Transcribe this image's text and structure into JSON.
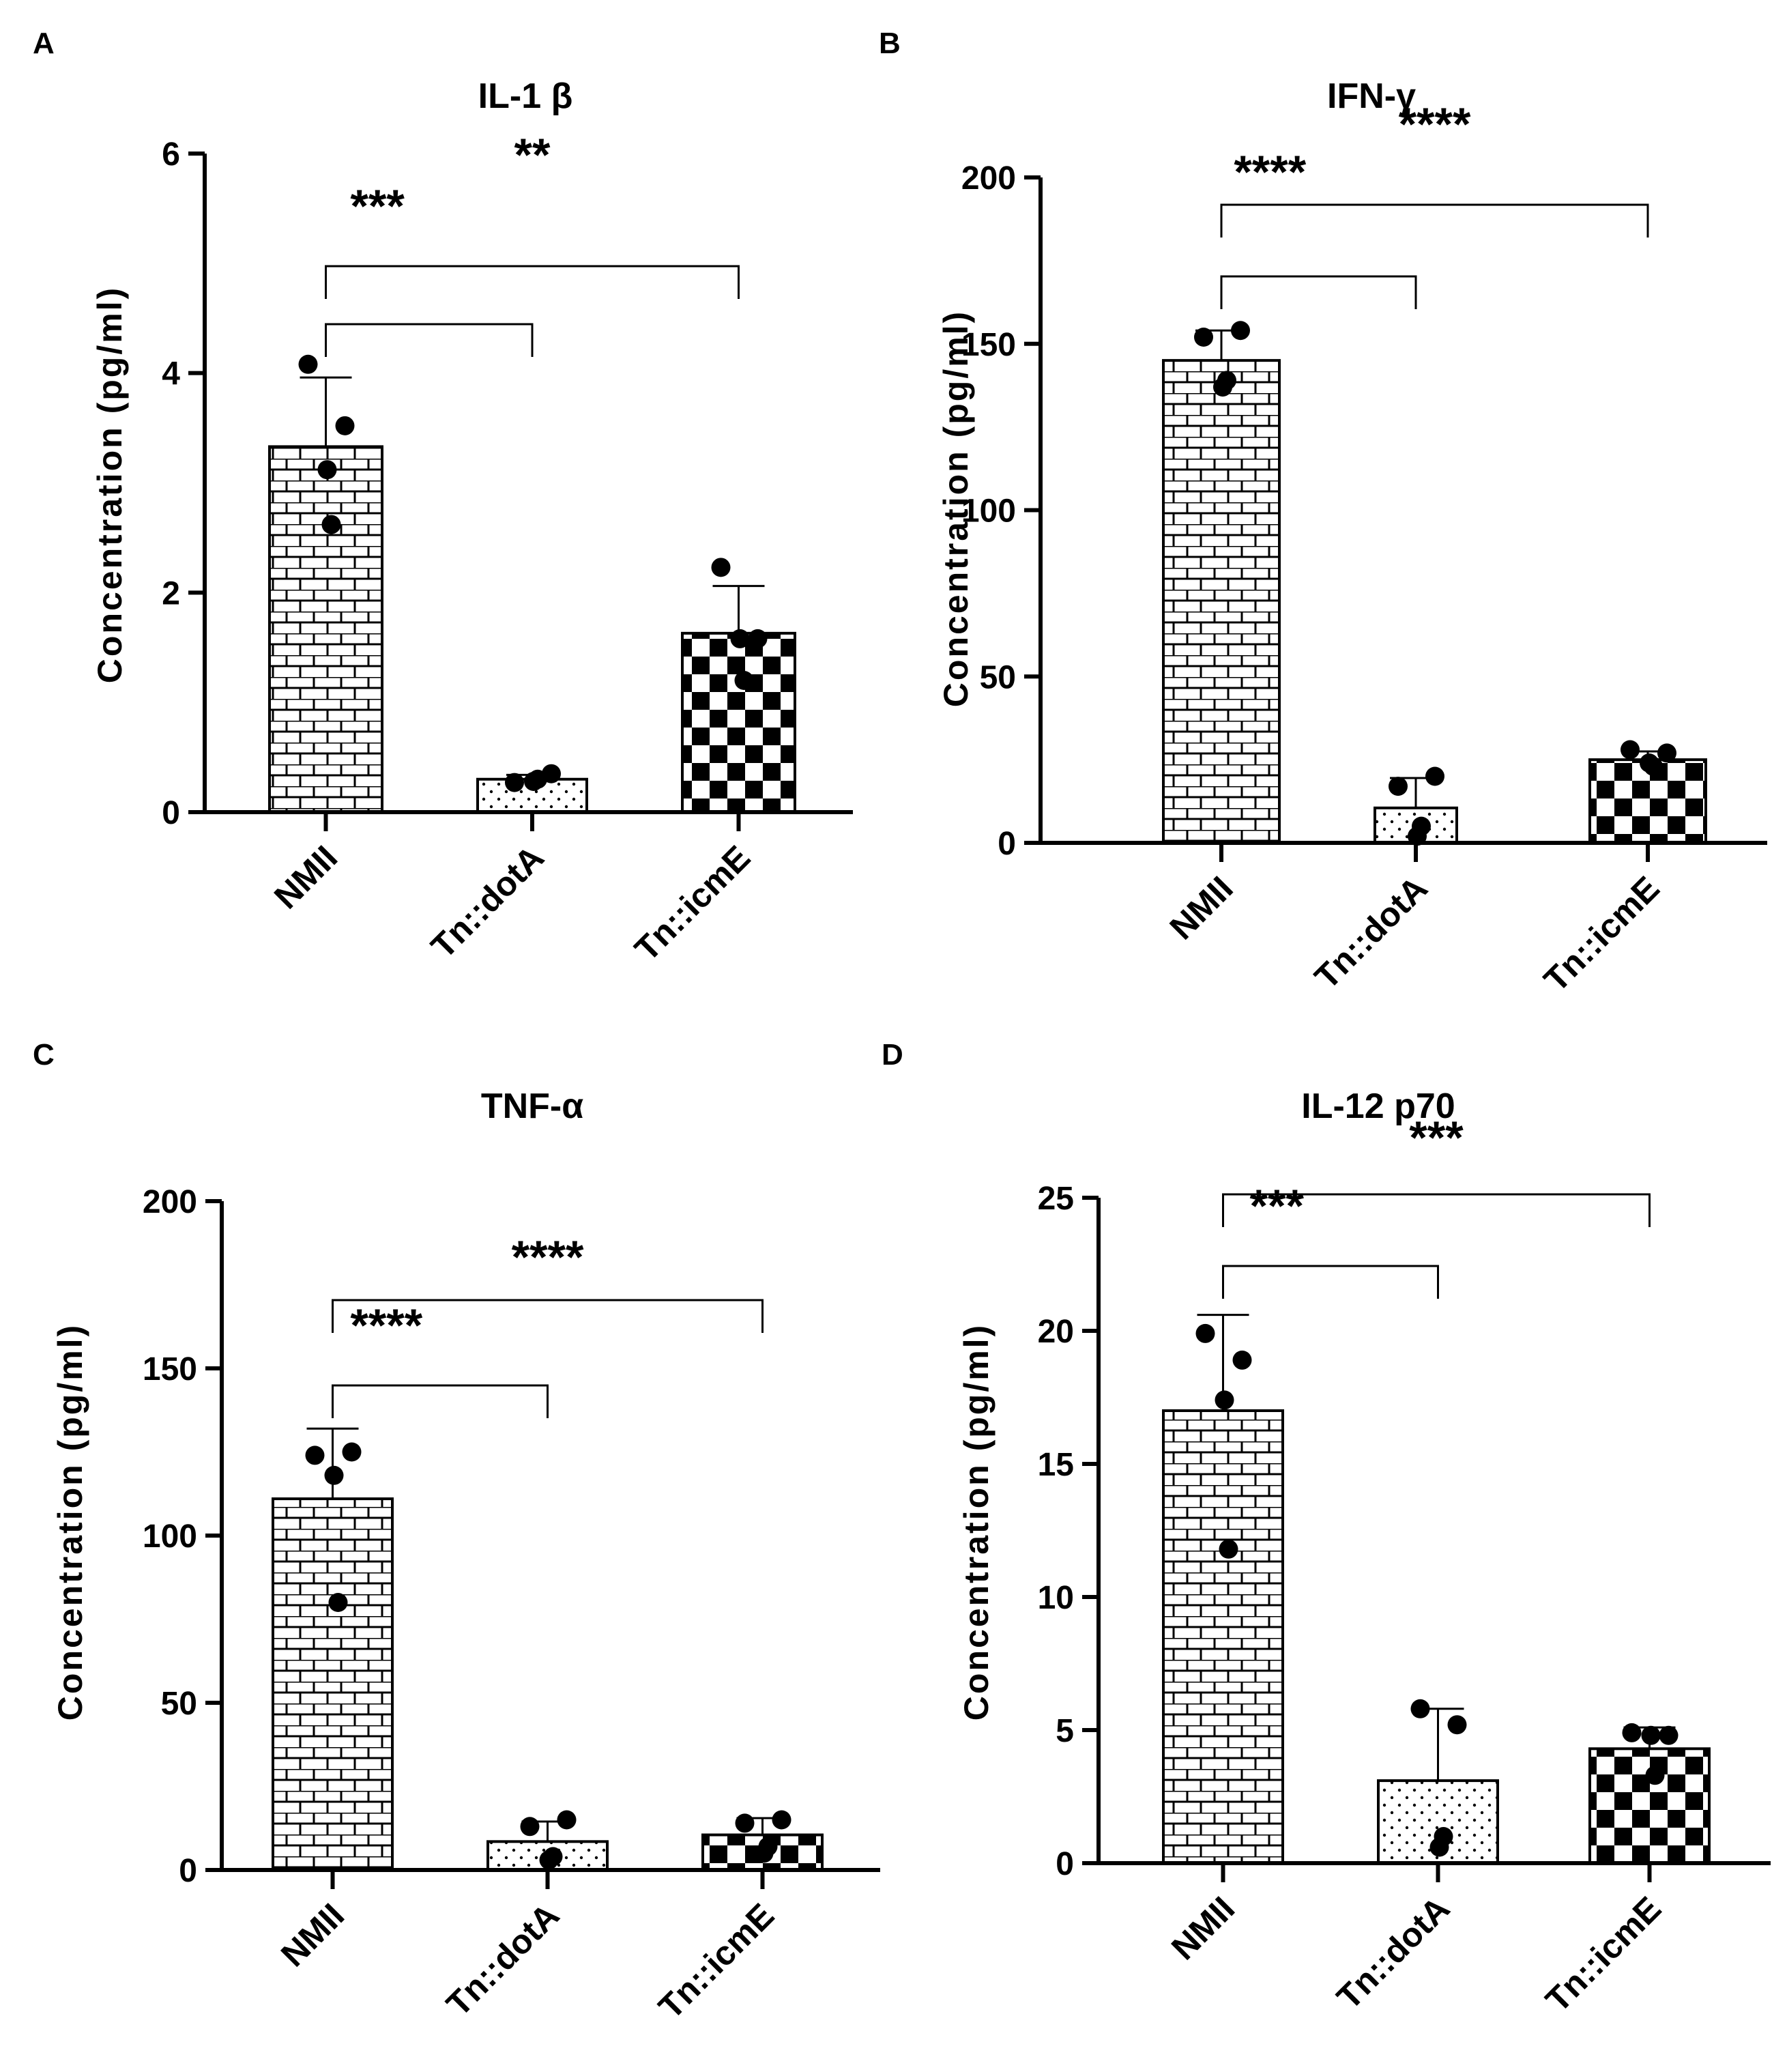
{
  "figure": {
    "colors": {
      "ink": "#000000",
      "background": "#ffffff"
    },
    "patterns": [
      "brick",
      "dots",
      "checker"
    ]
  },
  "chart_data": [
    {
      "panel": "A",
      "type": "bar",
      "title": "IL-1 β",
      "xlabel": "",
      "ylabel": "Concentration (pg/ml)",
      "ylim": [
        0,
        6
      ],
      "yticks": [
        0,
        2,
        4,
        6
      ],
      "categories": [
        "NMII",
        "Tn::dotA",
        "Tn::icmE"
      ],
      "values": [
        3.33,
        0.3,
        1.63
      ],
      "errors": [
        0.63,
        0.04,
        0.43
      ],
      "points": [
        [
          4.08,
          3.52,
          3.12,
          2.62
        ],
        [
          0.27,
          0.35,
          0.28,
          0.3
        ],
        [
          2.23,
          1.58,
          1.58,
          1.2
        ]
      ],
      "significance": [
        {
          "from": 0,
          "to": 1,
          "label": "***"
        },
        {
          "from": 0,
          "to": 2,
          "label": "**"
        }
      ]
    },
    {
      "panel": "B",
      "type": "bar",
      "title": "IFN-γ",
      "xlabel": "",
      "ylabel": "Concentration (pg/ml)",
      "ylim": [
        0,
        200
      ],
      "yticks": [
        0,
        50,
        100,
        150,
        200
      ],
      "categories": [
        "NMII",
        "Tn::dotA",
        "Tn::icmE"
      ],
      "values": [
        145,
        10.5,
        25
      ],
      "errors": [
        9,
        9,
        2.5
      ],
      "points": [
        [
          152,
          154,
          137,
          139
        ],
        [
          17,
          20,
          2,
          5
        ],
        [
          28,
          27,
          24,
          23
        ]
      ],
      "significance": [
        {
          "from": 0,
          "to": 1,
          "label": "****"
        },
        {
          "from": 0,
          "to": 2,
          "label": "****"
        }
      ]
    },
    {
      "panel": "C",
      "type": "bar",
      "title": "TNF-α",
      "xlabel": "",
      "ylabel": "Concentration (pg/ml)",
      "ylim": [
        0,
        200
      ],
      "yticks": [
        0,
        50,
        100,
        150,
        200
      ],
      "categories": [
        "NMII",
        "Tn::dotA",
        "Tn::icmE"
      ],
      "values": [
        111,
        8.5,
        10.5
      ],
      "errors": [
        21,
        6,
        5
      ],
      "points": [
        [
          124,
          125,
          118,
          80
        ],
        [
          13,
          15,
          3,
          4
        ],
        [
          14,
          15,
          5,
          7
        ]
      ],
      "significance": [
        {
          "from": 0,
          "to": 1,
          "label": "****"
        },
        {
          "from": 0,
          "to": 2,
          "label": "****"
        }
      ]
    },
    {
      "panel": "D",
      "type": "bar",
      "title": "IL-12 p70",
      "xlabel": "",
      "ylabel": "Concentration (pg/ml)",
      "ylim": [
        0,
        25
      ],
      "yticks": [
        0,
        5,
        10,
        15,
        20,
        25
      ],
      "categories": [
        "NMII",
        "Tn::dotA",
        "Tn::icmE"
      ],
      "values": [
        17,
        3.1,
        4.3
      ],
      "errors": [
        3.6,
        2.7,
        0.8
      ],
      "points": [
        [
          19.9,
          18.9,
          17.4,
          11.8
        ],
        [
          5.8,
          5.2,
          0.6,
          1.0
        ],
        [
          4.9,
          4.8,
          4.8,
          3.3
        ]
      ],
      "significance": [
        {
          "from": 0,
          "to": 1,
          "label": "***"
        },
        {
          "from": 0,
          "to": 2,
          "label": "***"
        }
      ]
    }
  ]
}
